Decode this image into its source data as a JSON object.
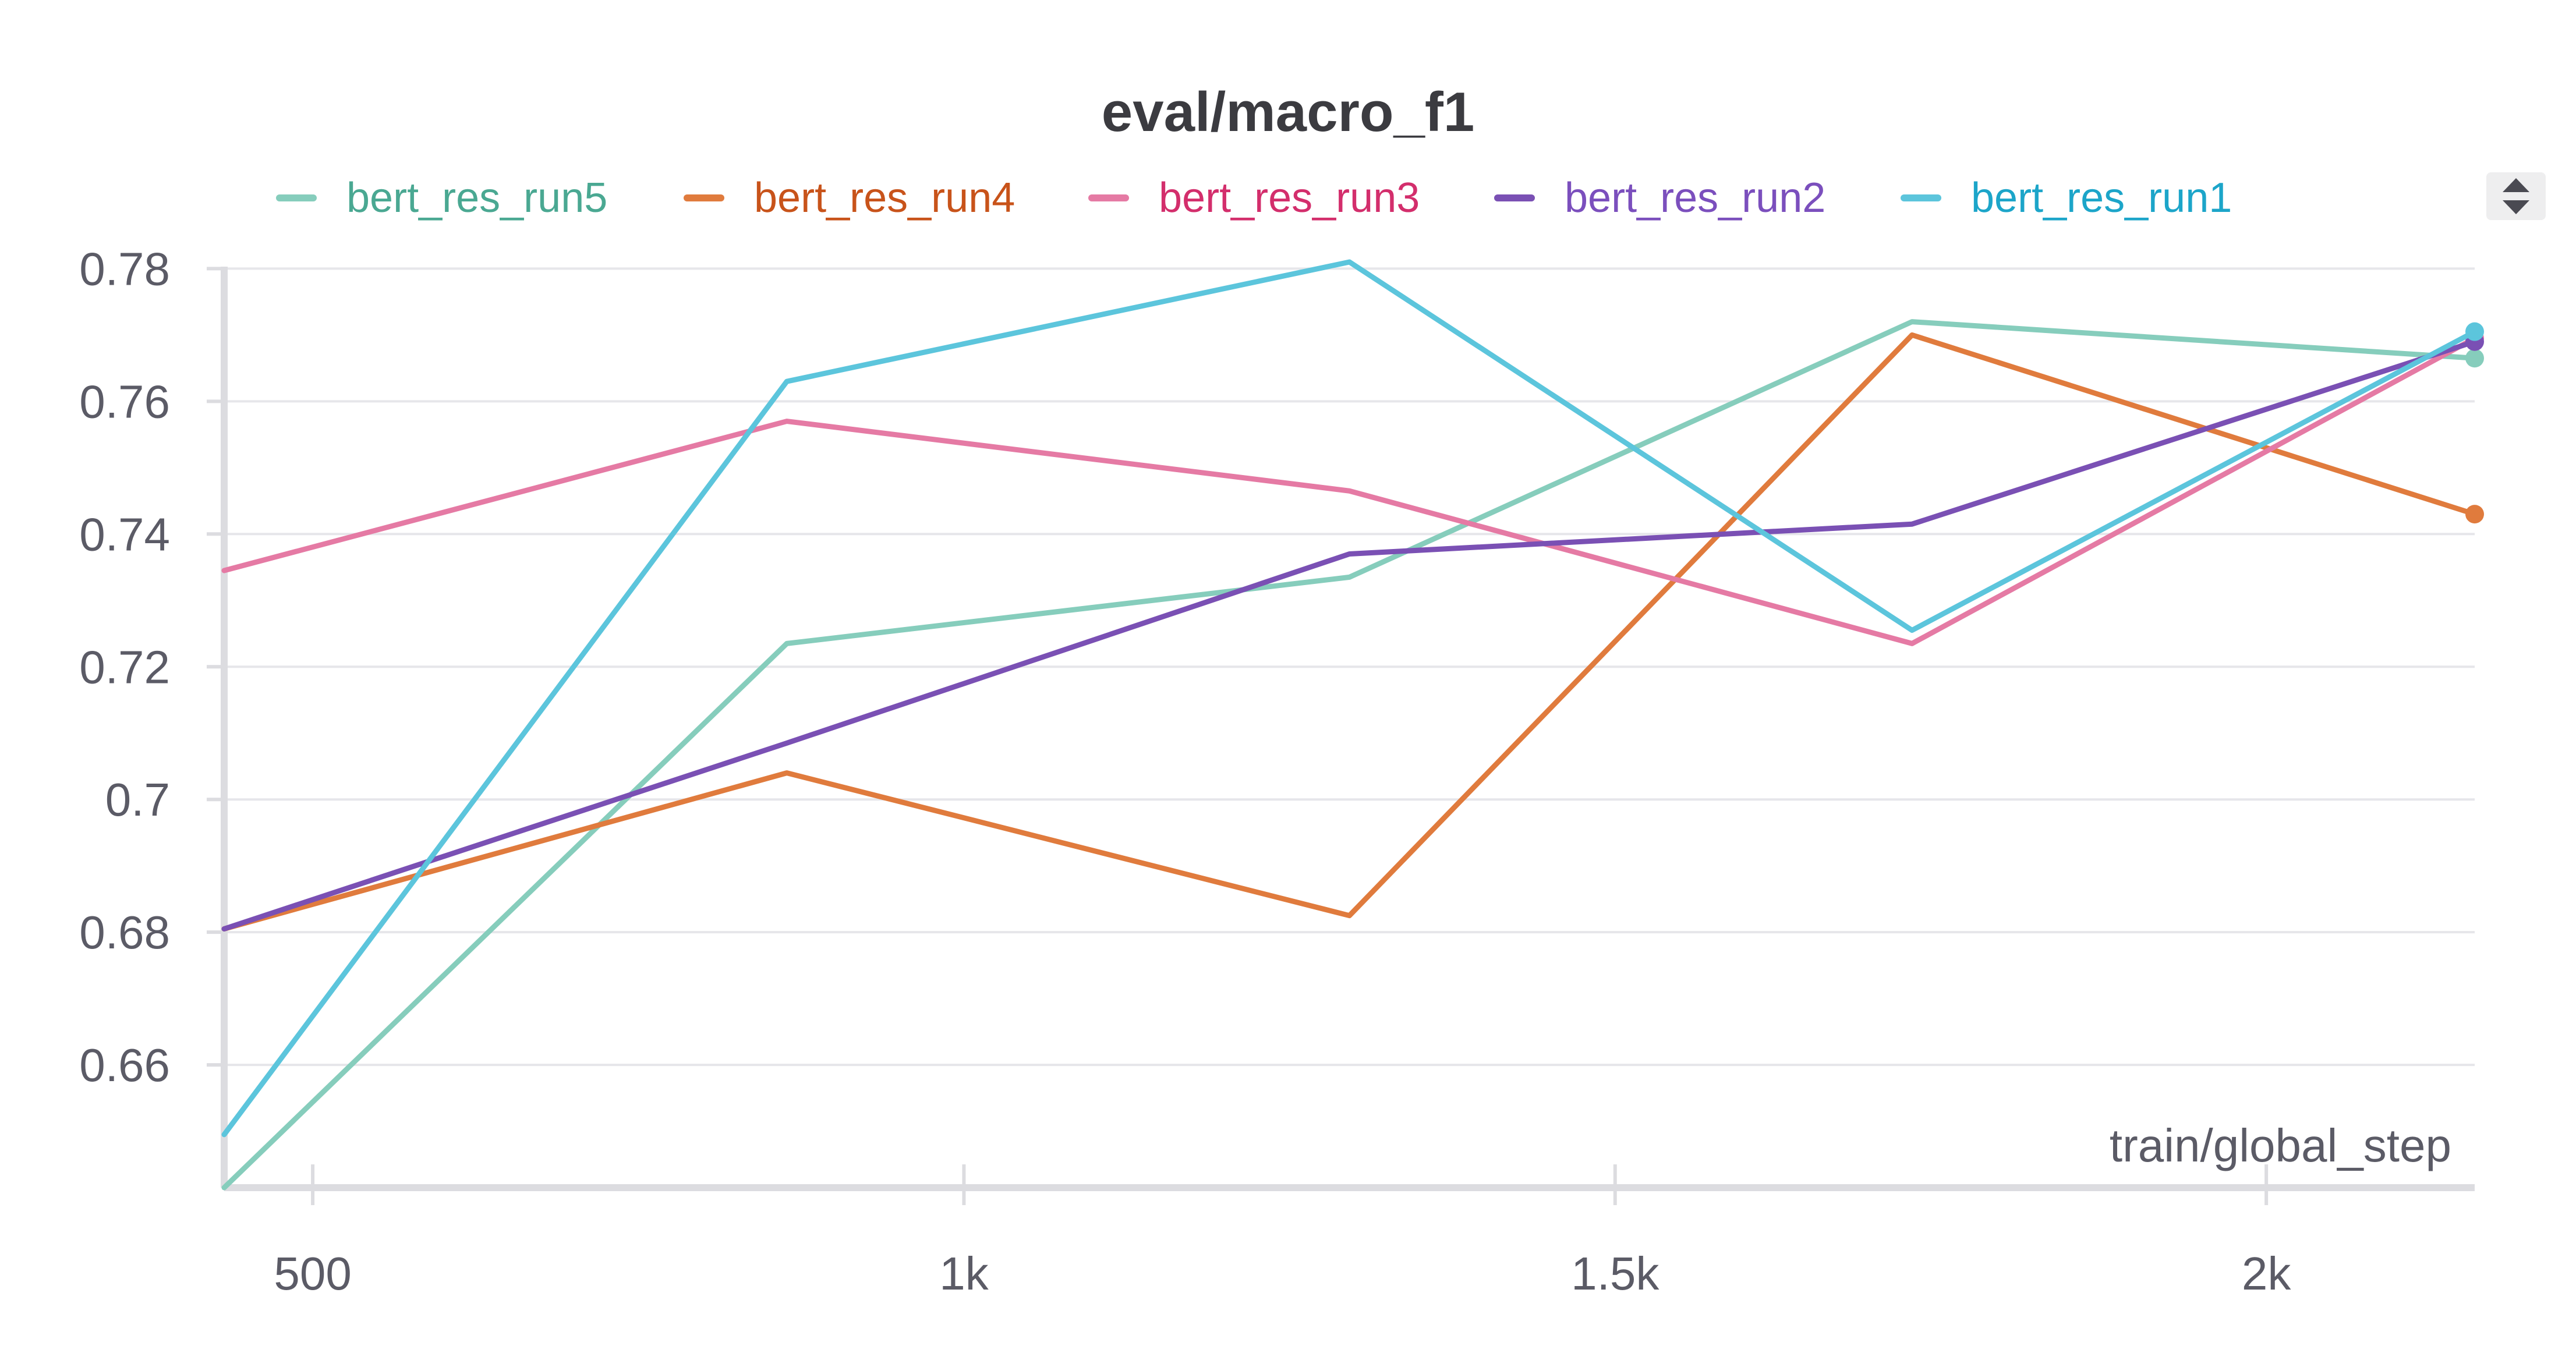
{
  "chart_data": {
    "type": "line",
    "title": "eval/macro_f1",
    "xlabel": "train/global_step",
    "ylabel": "",
    "x": [
      432,
      864,
      1296,
      1728,
      2160
    ],
    "xlim": [
      432,
      2160
    ],
    "ylim": [
      0.6415,
      0.781
    ],
    "xticks": [
      500,
      1000,
      1500,
      2000
    ],
    "xtick_labels": [
      "500",
      "1k",
      "1.5k",
      "2k"
    ],
    "yticks": [
      0.66,
      0.68,
      0.7,
      0.72,
      0.74,
      0.76,
      0.78
    ],
    "ytick_labels": [
      "0.66",
      "0.68",
      "0.7",
      "0.72",
      "0.74",
      "0.76",
      "0.78"
    ],
    "grid": true,
    "legend_position": "top",
    "series": [
      {
        "name": "bert_res_run5",
        "color": "#86cdbc",
        "text_color": "#4aa892",
        "values": [
          0.6415,
          0.7235,
          0.7335,
          0.772,
          0.7665
        ]
      },
      {
        "name": "bert_res_run4",
        "color": "#e07b3d",
        "text_color": "#c8531a",
        "values": [
          0.6805,
          0.704,
          0.6825,
          0.77,
          0.743
        ]
      },
      {
        "name": "bert_res_run3",
        "color": "#e57aa4",
        "text_color": "#d32e6c",
        "values": [
          0.7345,
          0.757,
          0.7465,
          0.7235,
          0.7695
        ]
      },
      {
        "name": "bert_res_run2",
        "color": "#7a50b4",
        "text_color": "#7b4fbd",
        "values": [
          0.6805,
          0.7085,
          0.737,
          0.7415,
          0.769
        ]
      },
      {
        "name": "bert_res_run1",
        "color": "#5cc5dc",
        "text_color": "#1ca5c9",
        "values": [
          0.6495,
          0.763,
          0.781,
          0.7255,
          0.7705
        ]
      }
    ]
  }
}
